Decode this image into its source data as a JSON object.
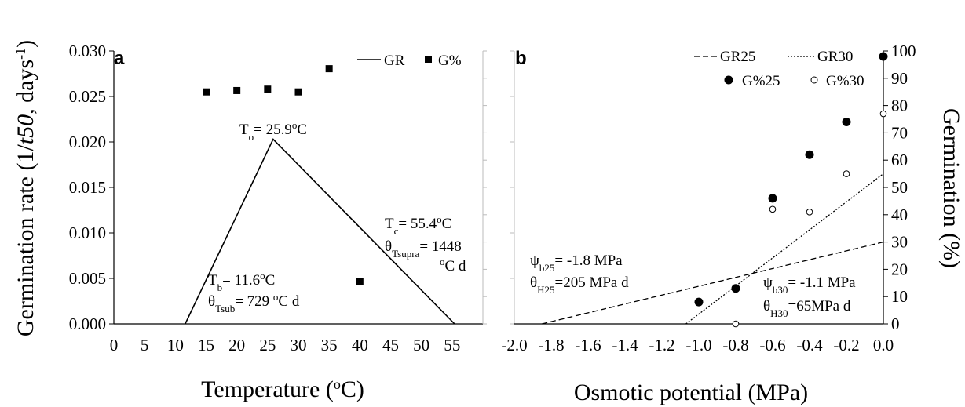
{
  "chart_data": [
    {
      "panel": "a",
      "type": "line",
      "xlabel": "Temperature",
      "xlabel_unit": "(°C)",
      "ylabel_left": "Germination rate (1/t50, days⁻¹)",
      "xticks": [
        0,
        5,
        10,
        15,
        20,
        25,
        30,
        35,
        40,
        45,
        50,
        55
      ],
      "yticks_left": [
        "0.000",
        "0.005",
        "0.010",
        "0.015",
        "0.020",
        "0.025",
        "0.030"
      ],
      "xlim": [
        0,
        60
      ],
      "ylim_left": [
        0,
        0.03
      ],
      "ylim_right": [
        0,
        100
      ],
      "series": [
        {
          "name": "GR",
          "style": "solid",
          "x": [
            11.6,
            25.9,
            55.4
          ],
          "y": [
            0,
            0.0203,
            0
          ]
        },
        {
          "name": "G%",
          "marker": "square",
          "axis": "right",
          "x": [
            15,
            20,
            25,
            30,
            35,
            40
          ],
          "y": [
            85,
            85.5,
            86,
            85,
            93.5,
            15.5
          ]
        }
      ],
      "annotations": {
        "To": "Tₒ= 25.9°C",
        "Tc": "Tᴄ= 55.4°C",
        "theta_supra": "θTsupra= 1448",
        "theta_supra_unit": "°C d",
        "Tb": "Tb= 11.6°C",
        "theta_sub": "θTsub= 729 °C d"
      }
    },
    {
      "panel": "b",
      "type": "line",
      "xlabel": "Osmotic potential (MPa)",
      "ylabel_right": "Germination (%)",
      "xticks": [
        "-2.0",
        "-1.8",
        "-1.6",
        "-1.4",
        "-1.2",
        "-1.0",
        "-0.8",
        "-0.6",
        "-0.4",
        "-0.2",
        "0.0"
      ],
      "yticks_right": [
        0,
        10,
        20,
        30,
        40,
        50,
        60,
        70,
        80,
        90,
        100
      ],
      "xlim": [
        -2.0,
        0.0
      ],
      "ylim_left": [
        0,
        0.03
      ],
      "ylim_right": [
        0,
        100
      ],
      "series": [
        {
          "name": "GR25",
          "style": "dashed",
          "x": [
            -1.85,
            0.0
          ],
          "y": [
            0,
            0.009
          ]
        },
        {
          "name": "GR30",
          "style": "dotted",
          "x": [
            -1.07,
            0.0
          ],
          "y": [
            0,
            0.0165
          ]
        },
        {
          "name": "G%25",
          "marker": "filled-circle",
          "axis": "right",
          "x": [
            -1.0,
            -0.8,
            -0.6,
            -0.4,
            -0.2,
            0.0
          ],
          "y": [
            8,
            13,
            46,
            62,
            74,
            98
          ]
        },
        {
          "name": "G%30",
          "marker": "open-circle",
          "axis": "right",
          "x": [
            -0.8,
            -0.6,
            -0.4,
            -0.2,
            0.0
          ],
          "y": [
            0,
            42,
            41,
            55,
            77
          ]
        }
      ],
      "annotations": {
        "psi_b25": "ψb25= -1.8 MPa",
        "theta_H25": "θH25=205 MPa d",
        "psi_b30": "ψb30= -1.1 MPa",
        "theta_H30": "θH30=65MPa d"
      }
    }
  ],
  "legend": {
    "GR": "GR",
    "Gpct": "G%",
    "GR25": "GR25",
    "GR30": "GR30",
    "Gpct25": "G%25",
    "Gpct30": "G%30"
  },
  "labels": {
    "panel_a": "a",
    "panel_b": "b",
    "ylabel_left_main": "Germination rate (1/",
    "ylabel_left_ital": "t50",
    "ylabel_left_end": ", days",
    "ylabel_left_sup": "-1",
    "ylabel_left_close": ")",
    "ylabel_right": "Germination (%)",
    "xlabel_a_main": "Temperature (",
    "xlabel_a_sup": "o",
    "xlabel_a_end": "C)",
    "xlabel_b": "Osmotic potential (MPa)"
  }
}
